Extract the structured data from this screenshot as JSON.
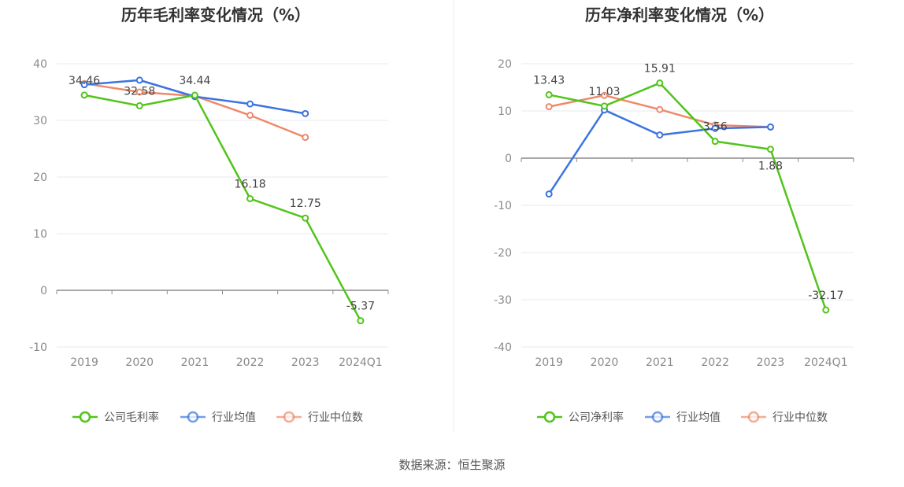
{
  "source_text": "数据来源：恒生聚源",
  "chart_data": [
    {
      "type": "line",
      "title": "历年毛利率变化情况（%）",
      "categories": [
        "2019",
        "2020",
        "2021",
        "2022",
        "2023",
        "2024Q1"
      ],
      "ylim": [
        -10,
        40
      ],
      "yticks": [
        40,
        30,
        20,
        10,
        0,
        -10
      ],
      "grid": true,
      "legend_position": "bottom",
      "series": [
        {
          "name": "公司毛利率",
          "color": "#52c41a",
          "values": [
            34.46,
            32.58,
            34.44,
            16.18,
            12.75,
            -5.37
          ],
          "labels": [
            "34.46",
            "32.58",
            "34.44",
            "16.18",
            "12.75",
            "-5.37"
          ]
        },
        {
          "name": "行业均值",
          "color": "#3b74e0",
          "values": [
            36.3,
            37.1,
            34.2,
            32.9,
            31.2,
            null
          ],
          "labels": []
        },
        {
          "name": "行业中位数",
          "color": "#f0896a",
          "values": [
            36.5,
            35.0,
            34.3,
            30.9,
            27.0,
            null
          ],
          "labels": []
        }
      ]
    },
    {
      "type": "line",
      "title": "历年净利率变化情况（%）",
      "categories": [
        "2019",
        "2020",
        "2021",
        "2022",
        "2023",
        "2024Q1"
      ],
      "ylim": [
        -40,
        20
      ],
      "yticks": [
        20,
        10,
        0,
        -10,
        -20,
        -30,
        -40
      ],
      "grid": true,
      "legend_position": "bottom",
      "series": [
        {
          "name": "公司净利率",
          "color": "#52c41a",
          "values": [
            13.43,
            11.03,
            15.91,
            3.56,
            1.88,
            -32.17
          ],
          "labels": [
            "13.43",
            "11.03",
            "15.91",
            "3.56",
            "1.88",
            "-32.17"
          ]
        },
        {
          "name": "行业均值",
          "color": "#3b74e0",
          "values": [
            -7.6,
            10.2,
            4.9,
            6.3,
            6.6,
            null
          ],
          "labels": []
        },
        {
          "name": "行业中位数",
          "color": "#f0896a",
          "values": [
            10.9,
            13.3,
            10.3,
            7.0,
            6.6,
            null
          ],
          "labels": []
        }
      ]
    }
  ]
}
